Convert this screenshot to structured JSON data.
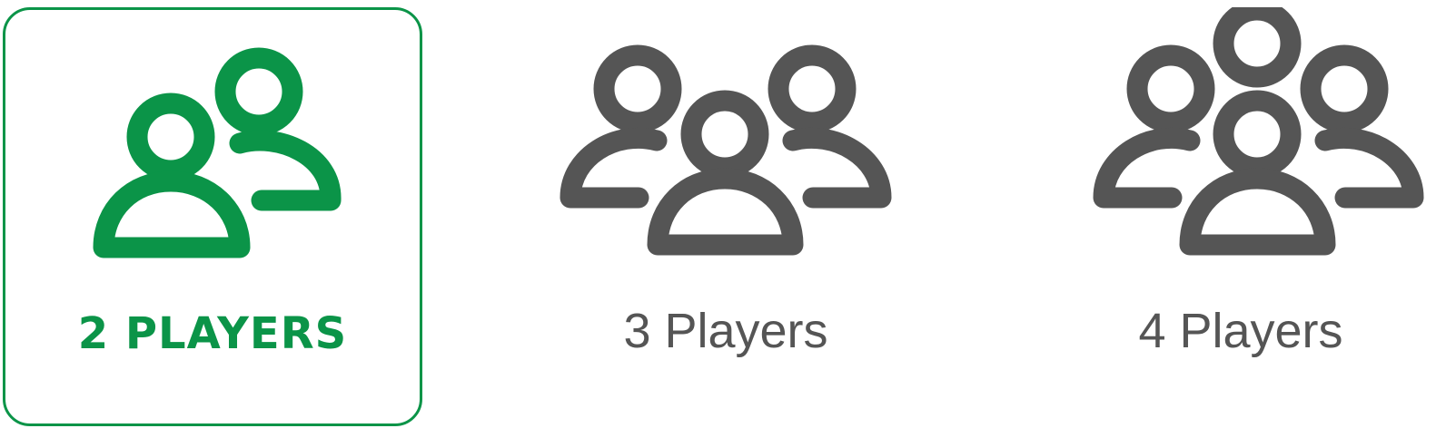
{
  "options": [
    {
      "label": "2 PLAYERS",
      "players": 2,
      "selected": true
    },
    {
      "label": "3 Players",
      "players": 3,
      "selected": false
    },
    {
      "label": "4 Players",
      "players": 4,
      "selected": false
    }
  ],
  "colors": {
    "selected": "#0b9448",
    "unselected": "#555555",
    "background": "#ffffff"
  },
  "icons": [
    "two-people-icon",
    "three-people-icon",
    "four-people-icon"
  ]
}
